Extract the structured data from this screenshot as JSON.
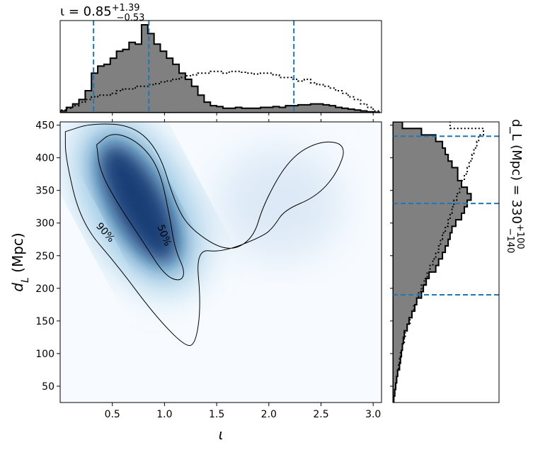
{
  "chart_data": {
    "type": "heatmap",
    "title": "",
    "xlabel": "ι",
    "ylabel": "d_L (Mpc)",
    "xlim": [
      0.0,
      3.08
    ],
    "ylim": [
      25,
      455
    ],
    "x_ticks": [
      "0.5",
      "1.0",
      "1.5",
      "2.0",
      "2.5",
      "3.0"
    ],
    "y_ticks": [
      "50",
      "100",
      "150",
      "200",
      "250",
      "300",
      "350",
      "400",
      "450"
    ],
    "colormap": "Blues",
    "density_peaks": [
      {
        "x": 0.75,
        "y": 330,
        "weight": 1.0
      },
      {
        "x": 2.1,
        "y": 330,
        "weight": 0.12
      }
    ],
    "contours": [
      {
        "label": "50%",
        "points": [
          [
            0.35,
            420
          ],
          [
            0.5,
            440
          ],
          [
            0.75,
            425
          ],
          [
            0.95,
            385
          ],
          [
            1.05,
            310
          ],
          [
            1.1,
            260
          ],
          [
            1.2,
            225
          ],
          [
            1.15,
            210
          ],
          [
            1.0,
            220
          ],
          [
            0.8,
            270
          ],
          [
            0.55,
            330
          ],
          [
            0.38,
            380
          ],
          [
            0.35,
            420
          ]
        ]
      },
      {
        "label": "90%",
        "points": [
          [
            0.05,
            440
          ],
          [
            0.3,
            453
          ],
          [
            0.7,
            450
          ],
          [
            0.95,
            410
          ],
          [
            1.1,
            330
          ],
          [
            1.25,
            290
          ],
          [
            1.6,
            255
          ],
          [
            1.85,
            275
          ],
          [
            1.95,
            330
          ],
          [
            2.2,
            400
          ],
          [
            2.5,
            427
          ],
          [
            2.75,
            420
          ],
          [
            2.65,
            375
          ],
          [
            2.45,
            340
          ],
          [
            2.15,
            320
          ],
          [
            2.05,
            295
          ],
          [
            1.95,
            280
          ],
          [
            1.55,
            255
          ],
          [
            1.3,
            260
          ],
          [
            1.35,
            175
          ],
          [
            1.3,
            115
          ],
          [
            1.2,
            110
          ],
          [
            0.9,
            160
          ],
          [
            0.55,
            235
          ],
          [
            0.2,
            300
          ],
          [
            0.05,
            400
          ],
          [
            0.05,
            440
          ]
        ]
      }
    ],
    "top_hist": {
      "annotation_main": "ι = 0.85",
      "annotation_sup": "+1.39",
      "annotation_sub": "−0.53",
      "bin_edges": [
        0.0,
        0.06,
        0.12,
        0.18,
        0.24,
        0.3,
        0.36,
        0.42,
        0.48,
        0.54,
        0.6,
        0.66,
        0.72,
        0.78,
        0.84,
        0.9,
        0.96,
        1.02,
        1.08,
        1.14,
        1.2,
        1.26,
        1.32,
        1.38,
        1.44,
        1.5,
        1.56,
        1.62,
        1.68,
        1.74,
        1.8,
        1.86,
        1.92,
        1.98,
        2.04,
        2.1,
        2.16,
        2.22,
        2.28,
        2.34,
        2.4,
        2.46,
        2.52,
        2.58,
        2.64,
        2.7,
        2.76,
        2.82,
        2.88,
        2.94,
        3.0,
        3.06
      ],
      "posterior": [
        0.02,
        0.06,
        0.1,
        0.15,
        0.25,
        0.45,
        0.53,
        0.55,
        0.62,
        0.7,
        0.72,
        0.8,
        0.78,
        1.0,
        0.9,
        0.78,
        0.7,
        0.62,
        0.55,
        0.45,
        0.38,
        0.3,
        0.2,
        0.12,
        0.08,
        0.07,
        0.05,
        0.05,
        0.06,
        0.05,
        0.05,
        0.05,
        0.06,
        0.06,
        0.07,
        0.06,
        0.08,
        0.08,
        0.09,
        0.09,
        0.1,
        0.1,
        0.09,
        0.08,
        0.06,
        0.05,
        0.04,
        0.03,
        0.02,
        0.01,
        0.005
      ],
      "prior": [
        0.03,
        0.05,
        0.08,
        0.12,
        0.15,
        0.18,
        0.2,
        0.2,
        0.22,
        0.25,
        0.27,
        0.27,
        0.3,
        0.3,
        0.32,
        0.33,
        0.35,
        0.36,
        0.38,
        0.4,
        0.42,
        0.43,
        0.45,
        0.45,
        0.47,
        0.47,
        0.45,
        0.47,
        0.47,
        0.46,
        0.45,
        0.44,
        0.45,
        0.45,
        0.43,
        0.4,
        0.4,
        0.38,
        0.36,
        0.38,
        0.34,
        0.32,
        0.3,
        0.28,
        0.25,
        0.22,
        0.18,
        0.15,
        0.1,
        0.06,
        0.02
      ],
      "quantiles": [
        0.32,
        0.85,
        2.24
      ]
    },
    "right_hist": {
      "annotation_main": "d_L (Mpc) = 330",
      "annotation_sup": "+100",
      "annotation_sub": "−140",
      "bin_edges": [
        25,
        35,
        45,
        55,
        65,
        75,
        85,
        95,
        105,
        115,
        125,
        135,
        145,
        155,
        165,
        175,
        185,
        195,
        205,
        215,
        225,
        235,
        245,
        255,
        265,
        275,
        285,
        295,
        305,
        315,
        325,
        335,
        345,
        355,
        365,
        375,
        385,
        395,
        405,
        415,
        425,
        435,
        445,
        455
      ],
      "posterior": [
        0.01,
        0.02,
        0.03,
        0.04,
        0.05,
        0.07,
        0.08,
        0.09,
        0.1,
        0.11,
        0.12,
        0.15,
        0.17,
        0.2,
        0.23,
        0.25,
        0.3,
        0.32,
        0.35,
        0.38,
        0.45,
        0.48,
        0.52,
        0.55,
        0.58,
        0.6,
        0.62,
        0.66,
        0.72,
        0.75,
        0.78,
        0.82,
        0.78,
        0.72,
        0.68,
        0.68,
        0.62,
        0.58,
        0.55,
        0.52,
        0.45,
        0.3,
        0.1
      ],
      "prior": [
        0.01,
        0.02,
        0.03,
        0.04,
        0.05,
        0.06,
        0.07,
        0.08,
        0.1,
        0.12,
        0.13,
        0.15,
        0.18,
        0.2,
        0.22,
        0.25,
        0.27,
        0.3,
        0.33,
        0.36,
        0.39,
        0.42,
        0.45,
        0.48,
        0.5,
        0.52,
        0.55,
        0.58,
        0.6,
        0.62,
        0.64,
        0.67,
        0.7,
        0.72,
        0.75,
        0.78,
        0.8,
        0.83,
        0.85,
        0.88,
        0.9,
        0.95,
        0.6
      ],
      "quantiles": [
        190,
        330,
        433
      ]
    },
    "colors": {
      "hist_fill": "#808080",
      "quantile_line": "#1f77b4",
      "contour": "#000000",
      "density_max": "#08306b"
    }
  }
}
